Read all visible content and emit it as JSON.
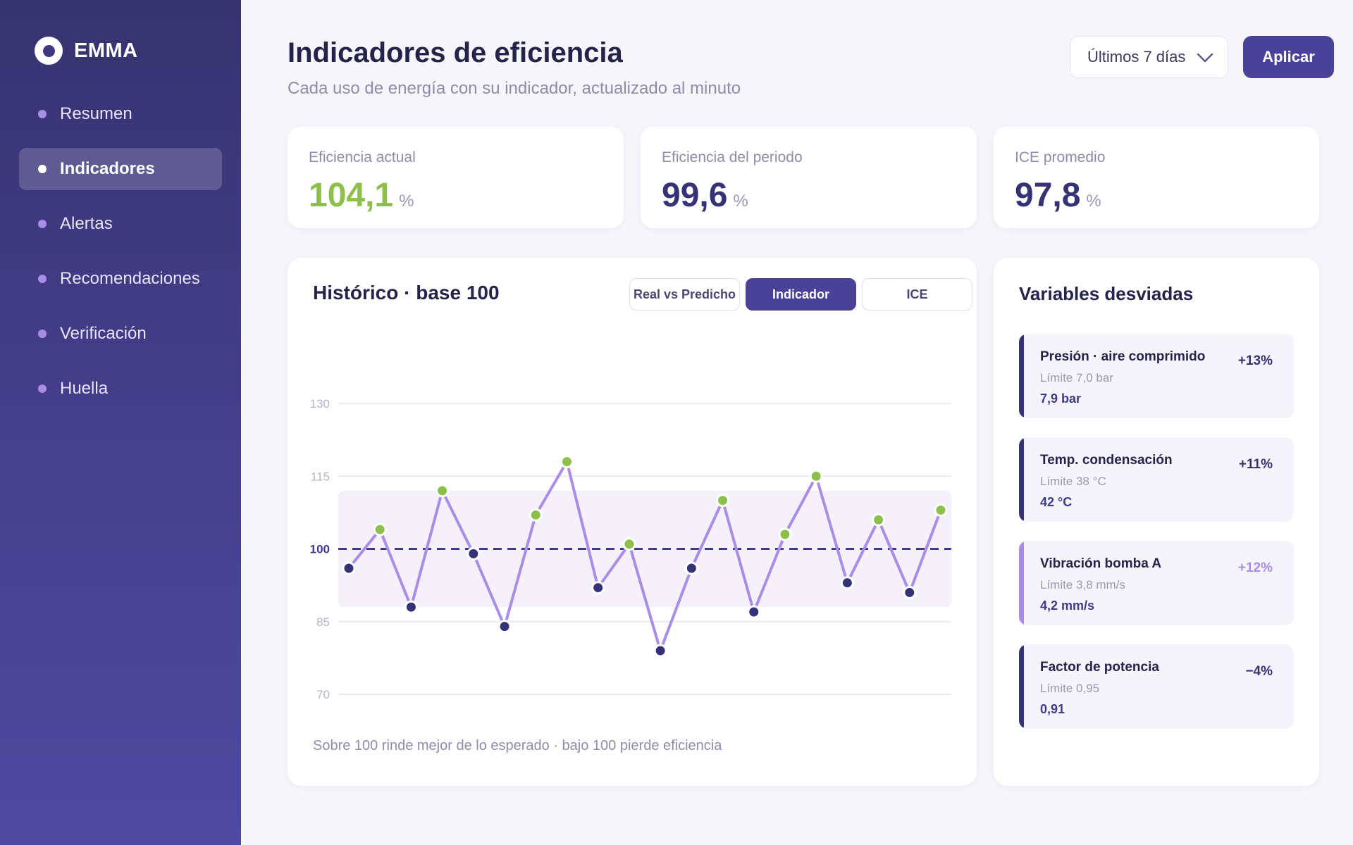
{
  "app": {
    "name": "EMMA"
  },
  "colors": {
    "accent": "#4a4298",
    "green": "#8cc04a",
    "navy": "#353276",
    "lavender": "#a88ee6"
  },
  "sidebar": {
    "items": [
      {
        "label": "Resumen",
        "active": false
      },
      {
        "label": "Indicadores",
        "active": true
      },
      {
        "label": "Alertas",
        "active": false
      },
      {
        "label": "Recomendaciones",
        "active": false
      },
      {
        "label": "Verificación",
        "active": false
      },
      {
        "label": "Huella",
        "active": false
      }
    ]
  },
  "header": {
    "title": "Indicadores de eficiencia",
    "subtitle": "Cada uso de energía con su indicador, actualizado al minuto",
    "period_selected": "Últimos 7 días",
    "apply_label": "Aplicar"
  },
  "kpis": [
    {
      "label": "Eficiencia actual",
      "value": "104,1",
      "unit": "%"
    },
    {
      "label": "Eficiencia del periodo",
      "value": "99,6",
      "unit": "%"
    },
    {
      "label": "ICE promedio",
      "value": "97,8",
      "unit": "%"
    }
  ],
  "chart_panel": {
    "title": "Histórico · base 100",
    "tabs": [
      "Real vs Predicho",
      "Indicador",
      "ICE"
    ],
    "active_tab": "Indicador",
    "note": "Sobre 100 rinde mejor de lo esperado · bajo 100 pierde eficiencia"
  },
  "chart_data": {
    "type": "line",
    "title": "Histórico · base 100",
    "x": [
      1,
      2,
      3,
      4,
      5,
      6,
      7,
      8,
      9,
      10,
      11,
      12,
      13,
      14,
      15,
      16,
      17,
      18,
      19,
      20
    ],
    "series": [
      {
        "values": [
          96,
          104,
          88,
          112,
          99,
          84,
          107,
          118,
          92,
          101,
          79,
          96,
          110,
          87,
          103,
          115,
          93,
          106,
          91,
          108
        ]
      }
    ],
    "y_ticks": [
      "130",
      "115",
      "100",
      "85",
      "70"
    ],
    "ylim": [
      70,
      130
    ],
    "reference_line": 100,
    "band": [
      88,
      112
    ],
    "point_colors": {
      "above": "#8cc04a",
      "below": "#353276"
    },
    "line_color": "#a88ee6",
    "grid": true
  },
  "variables": {
    "title": "Variables desviadas",
    "items": [
      {
        "name": "Presión · aire comprimido",
        "limit": "Límite 7,0 bar",
        "value": "7,9 bar",
        "delta": "+13%",
        "color": "#353276"
      },
      {
        "name": "Temp. condensación",
        "limit": "Límite 38 °C",
        "value": "42 °C",
        "delta": "+11%",
        "color": "#353276"
      },
      {
        "name": "Vibración bomba A",
        "limit": "Límite 3,8 mm/s",
        "value": "4,2 mm/s",
        "delta": "+12%",
        "color": "#a88ee6"
      },
      {
        "name": "Factor de potencia",
        "limit": "Límite 0,95",
        "value": "0,91",
        "delta": "−4%",
        "color": "#353276"
      }
    ]
  }
}
